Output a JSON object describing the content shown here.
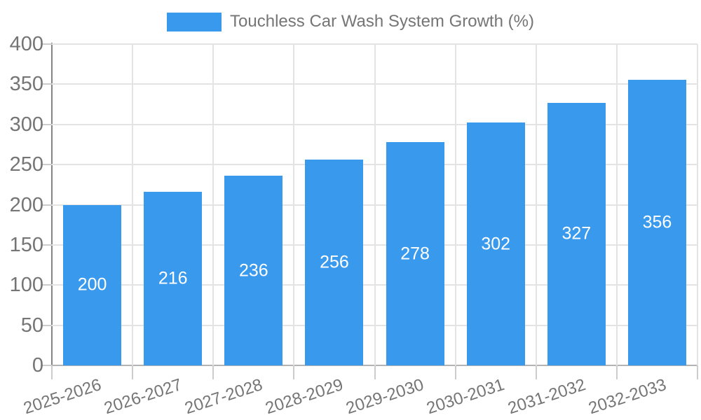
{
  "legend": {
    "label": "Touchless Car Wash System Growth (%)"
  },
  "chart_data": {
    "type": "bar",
    "title": "Touchless Car Wash System Growth (%)",
    "categories": [
      "2025-2026",
      "2026-2027",
      "2027-2028",
      "2028-2029",
      "2029-2030",
      "2030-2031",
      "2031-2032",
      "2032-2033"
    ],
    "values": [
      200,
      216,
      236,
      256,
      278,
      302,
      327,
      356
    ],
    "xlabel": "",
    "ylabel": "",
    "ylim": [
      0,
      400
    ],
    "ytick_step": 50,
    "yticks": [
      0,
      50,
      100,
      150,
      200,
      250,
      300,
      350,
      400
    ],
    "grid": true,
    "legend_position": "top-center",
    "bar_label_position": "middle-inside"
  },
  "colors": {
    "bar": "#3999EC",
    "bar_label": "#FFFFFF",
    "axis_text": "#757575",
    "gridline": "#E3E3E3",
    "tick": "#CCCCCC",
    "y_axis_line": "#848484",
    "x_axis_line": "#B3B3B3",
    "background": "#FFFFFF"
  }
}
